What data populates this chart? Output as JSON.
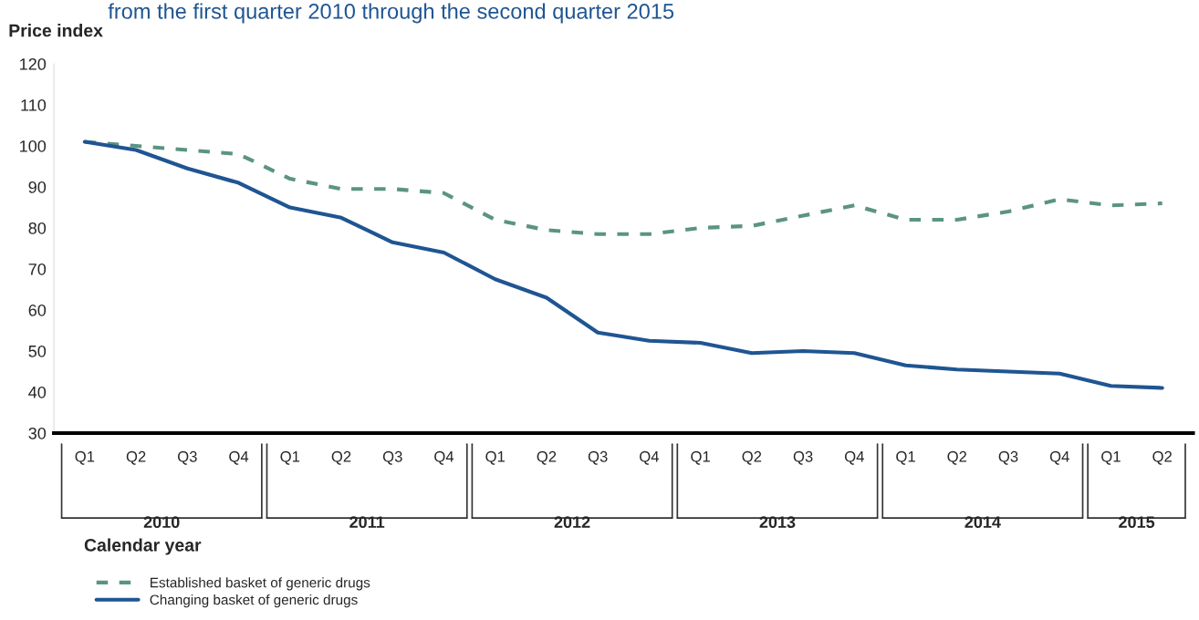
{
  "chart_data": {
    "type": "line",
    "subtitle": "from the first quarter 2010 through the second quarter 2015",
    "xlabel": "Calendar year",
    "ylabel": "Price index",
    "categories": [
      "Q1",
      "Q2",
      "Q3",
      "Q4",
      "Q1",
      "Q2",
      "Q3",
      "Q4",
      "Q1",
      "Q2",
      "Q3",
      "Q4",
      "Q1",
      "Q2",
      "Q3",
      "Q4",
      "Q1",
      "Q2",
      "Q3",
      "Q4",
      "Q1",
      "Q2"
    ],
    "series": [
      {
        "name": "Established basket of generic drugs",
        "color": "#5b9482",
        "line_style": "dashed",
        "values": [
          101,
          100,
          99,
          98,
          92,
          89.5,
          89.5,
          88.5,
          82,
          79.5,
          78.5,
          78.5,
          80,
          80.5,
          83,
          85.5,
          82,
          82,
          84,
          87,
          85.5,
          86
        ]
      },
      {
        "name": "Changing basket of generic drugs",
        "color": "#1f5592",
        "line_style": "solid",
        "values": [
          101,
          99,
          94.5,
          91,
          85,
          82.5,
          76.5,
          74,
          67.5,
          63,
          54.5,
          52.5,
          52,
          49.5,
          50,
          49.5,
          46.5,
          45.5,
          45,
          44.5,
          41.5,
          41
        ]
      }
    ],
    "annotations": [
      "2010",
      "2011",
      "2012",
      "2013",
      "2014",
      "2015"
    ],
    "ylim": [
      30,
      120
    ],
    "yticks": [
      30,
      40,
      50,
      60,
      70,
      80,
      90,
      100,
      110,
      120
    ],
    "grid": false,
    "legend": "bottom left",
    "marker": "none"
  }
}
